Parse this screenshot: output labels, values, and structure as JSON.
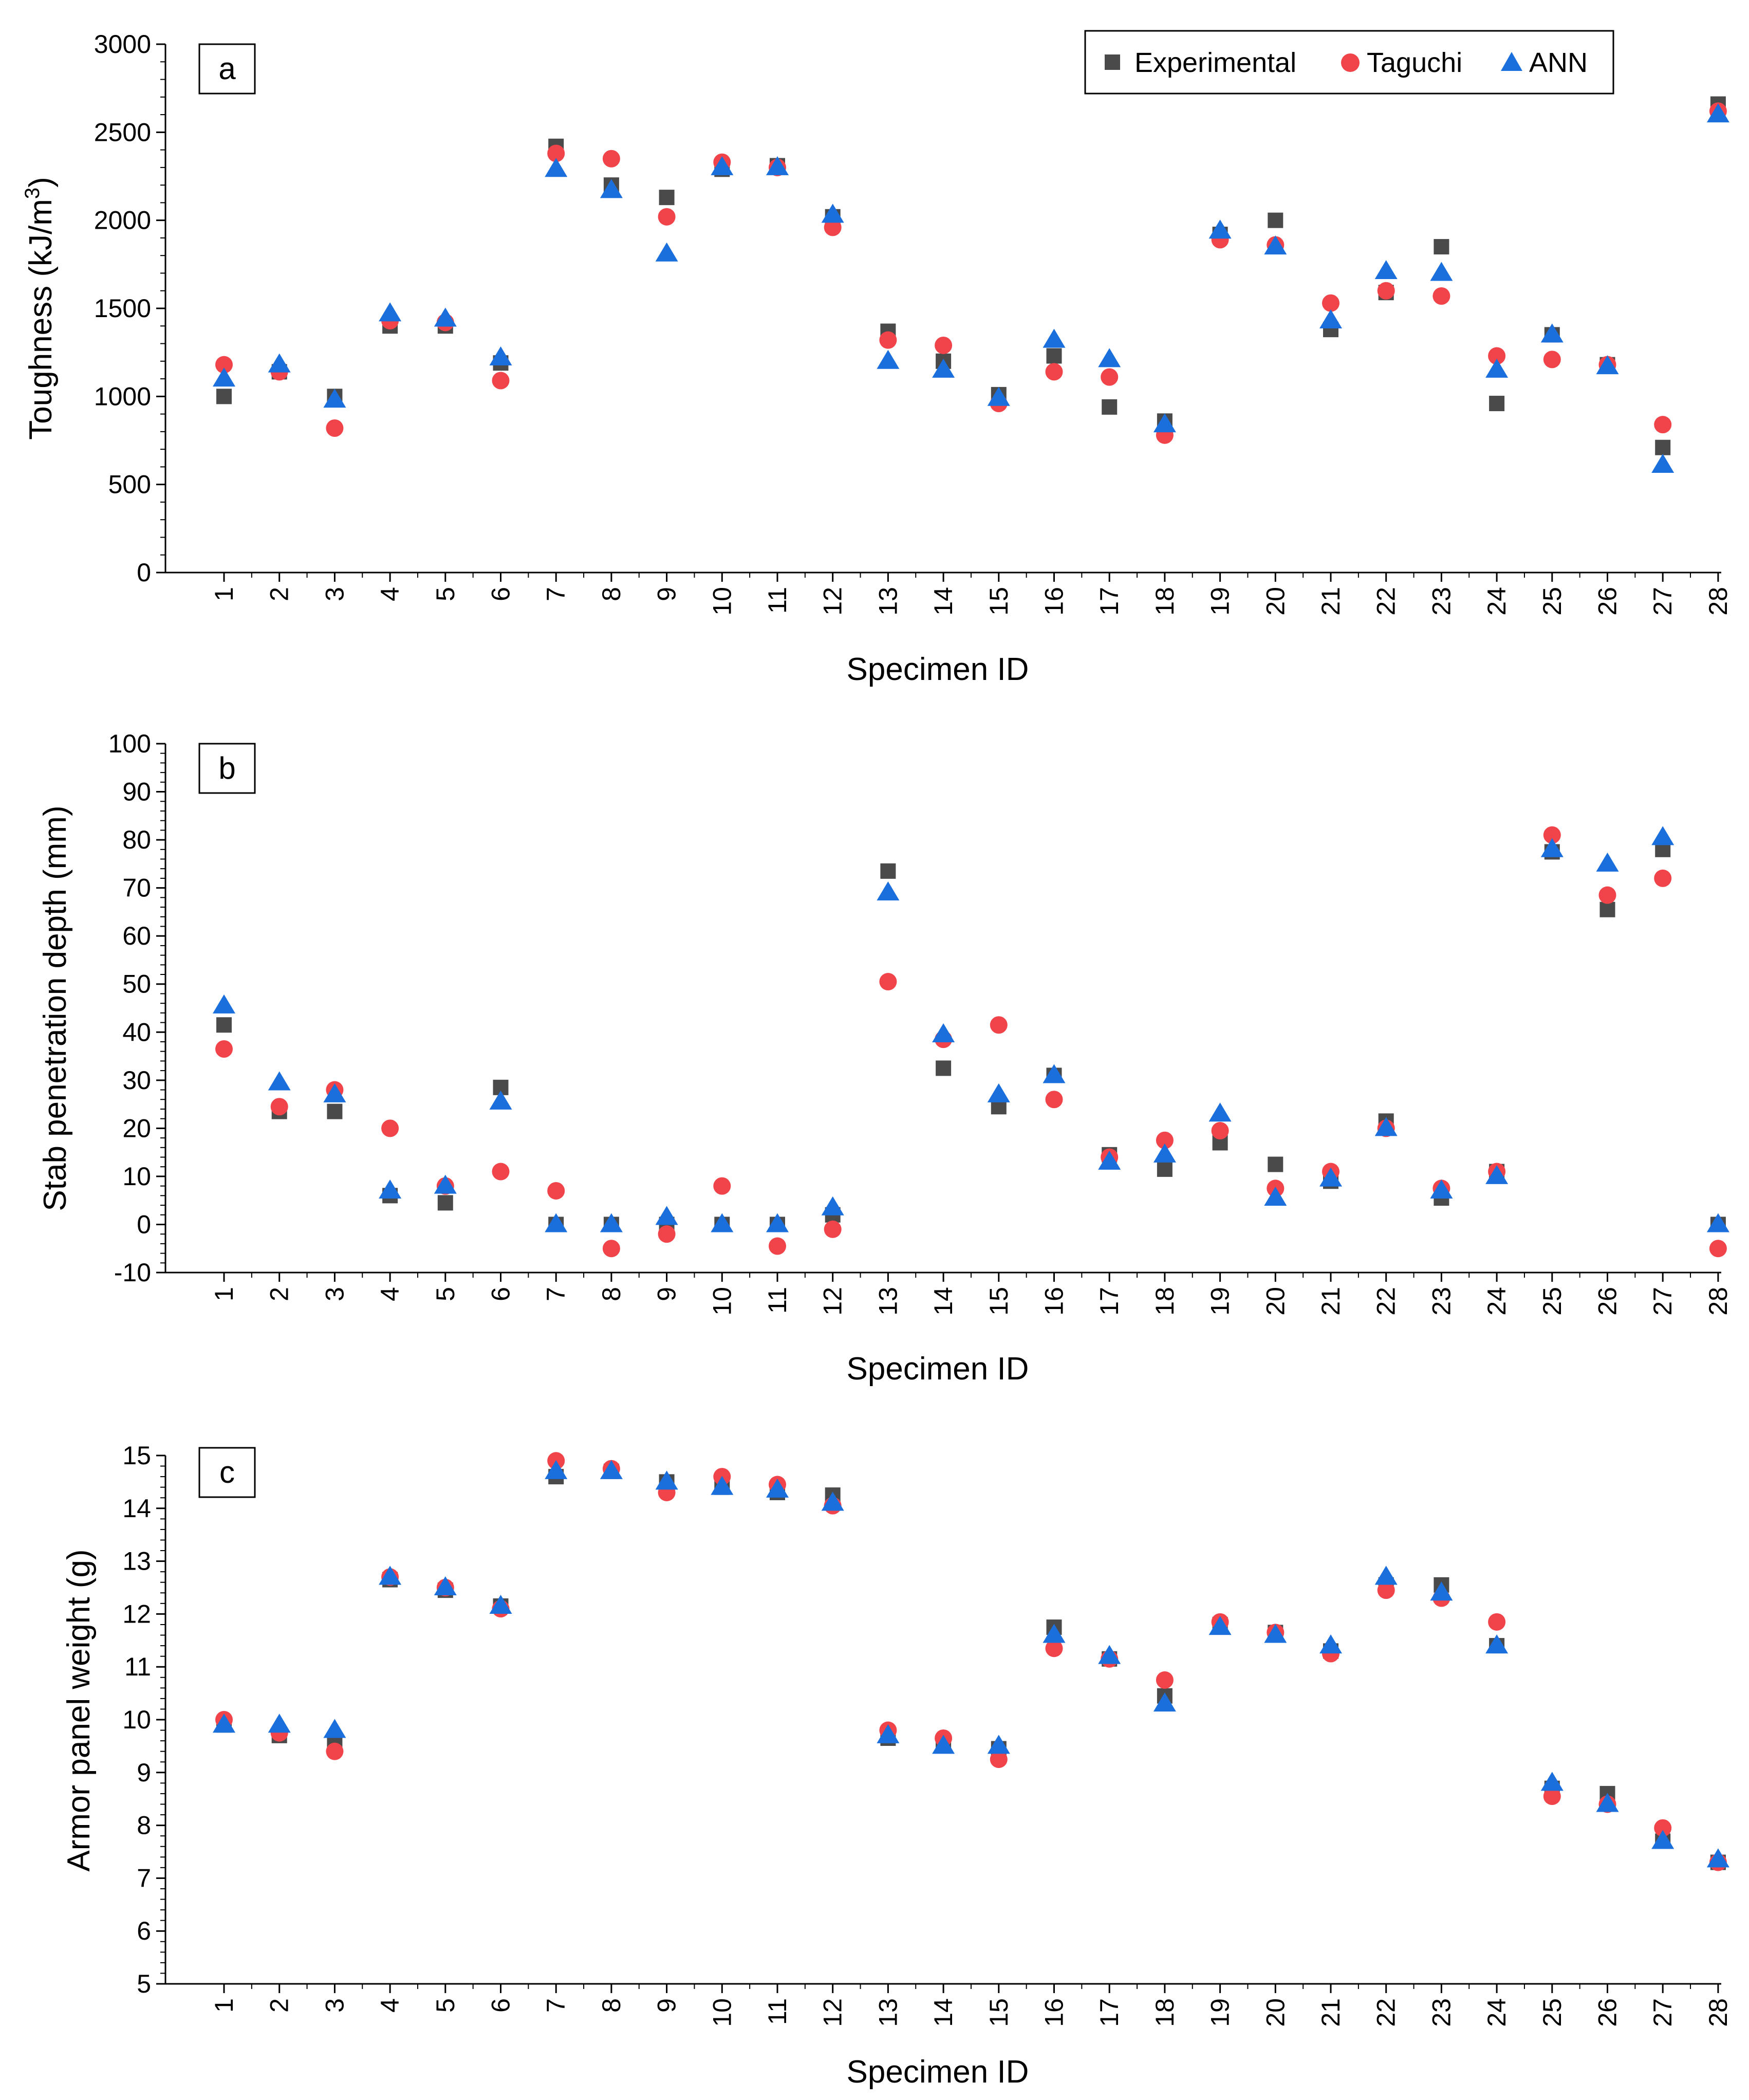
{
  "colors": {
    "experimental": "#4a4a4a",
    "taguchi": "#f0434a",
    "ann": "#1a6fdc"
  },
  "legend": {
    "experimental": "Experimental",
    "taguchi": "Taguchi",
    "ann": "ANN"
  },
  "chart_data": [
    {
      "type": "scatter",
      "panel_label": "a",
      "title": "",
      "xlabel": "Specimen ID",
      "ylabel": "Toughness (kJ/m³)",
      "ylabel_parts": {
        "main": "Toughness (kJ/m",
        "sup": "3",
        "end": ")"
      },
      "x": [
        1,
        2,
        3,
        4,
        5,
        6,
        7,
        8,
        9,
        10,
        11,
        12,
        13,
        14,
        15,
        16,
        17,
        18,
        19,
        20,
        21,
        22,
        23,
        24,
        25,
        26,
        27,
        28
      ],
      "ylim": [
        0,
        3000
      ],
      "yticks": [
        0,
        500,
        1000,
        1500,
        2000,
        2500,
        3000
      ],
      "legend_position": "top-right",
      "series": [
        {
          "name": "Experimental",
          "marker": "square",
          "values": [
            1000,
            1140,
            1000,
            1400,
            1400,
            1190,
            2420,
            2200,
            2130,
            2290,
            2310,
            2020,
            1370,
            1200,
            1010,
            1230,
            940,
            860,
            1920,
            2000,
            1380,
            1590,
            1850,
            960,
            1350,
            1180,
            710,
            2660
          ]
        },
        {
          "name": "Taguchi",
          "marker": "circle",
          "values": [
            1180,
            1140,
            820,
            1430,
            1420,
            1090,
            2380,
            2350,
            2020,
            2330,
            2300,
            1960,
            1320,
            1290,
            960,
            1140,
            1110,
            780,
            1890,
            1860,
            1530,
            1600,
            1570,
            1230,
            1210,
            1180,
            840,
            2620
          ]
        },
        {
          "name": "ANN",
          "marker": "triangle",
          "values": [
            1100,
            1180,
            980,
            1470,
            1440,
            1220,
            2290,
            2170,
            1810,
            2300,
            2300,
            2030,
            1200,
            1150,
            990,
            1320,
            1210,
            840,
            1940,
            1850,
            1430,
            1710,
            1700,
            1150,
            1350,
            1170,
            610,
            2600
          ]
        }
      ]
    },
    {
      "type": "scatter",
      "panel_label": "b",
      "title": "",
      "xlabel": "Specimen ID",
      "ylabel": "Stab penetration depth (mm)",
      "x": [
        1,
        2,
        3,
        4,
        5,
        6,
        7,
        8,
        9,
        10,
        11,
        12,
        13,
        14,
        15,
        16,
        17,
        18,
        19,
        20,
        21,
        22,
        23,
        24,
        25,
        26,
        27,
        28
      ],
      "ylim": [
        -10,
        100
      ],
      "yticks": [
        -10,
        0,
        10,
        20,
        30,
        40,
        50,
        60,
        70,
        80,
        90,
        100
      ],
      "series": [
        {
          "name": "Experimental",
          "marker": "square",
          "values": [
            41.5,
            23.5,
            23.5,
            6,
            4.5,
            28.5,
            0,
            0,
            0,
            0,
            0,
            2,
            73.5,
            32.5,
            24.5,
            31,
            14.5,
            11.5,
            17,
            12.5,
            9,
            21.5,
            5.5,
            11,
            77.5,
            65.5,
            78,
            0
          ]
        },
        {
          "name": "Taguchi",
          "marker": "circle",
          "values": [
            36.5,
            24.5,
            28,
            20,
            8,
            11,
            7,
            -5,
            -2,
            8,
            -4.5,
            -1,
            50.5,
            38.5,
            41.5,
            26,
            14,
            17.5,
            19.5,
            7.5,
            11,
            20,
            7.5,
            11,
            81,
            68.5,
            72,
            -5
          ]
        },
        {
          "name": "ANN",
          "marker": "triangle",
          "values": [
            45.5,
            29.5,
            27,
            7,
            8,
            25.5,
            0,
            0,
            1.5,
            0,
            0,
            3.5,
            69,
            39.5,
            27,
            31,
            13,
            14.5,
            23,
            5.5,
            9.5,
            20,
            7,
            10,
            78,
            75,
            80.5,
            0
          ]
        }
      ]
    },
    {
      "type": "scatter",
      "panel_label": "c",
      "title": "",
      "xlabel": "Specimen ID",
      "ylabel": "Armor panel weight (g)",
      "x": [
        1,
        2,
        3,
        4,
        5,
        6,
        7,
        8,
        9,
        10,
        11,
        12,
        13,
        14,
        15,
        16,
        17,
        18,
        19,
        20,
        21,
        22,
        23,
        24,
        25,
        26,
        27,
        28
      ],
      "ylim": [
        5,
        15
      ],
      "yticks": [
        5,
        6,
        7,
        8,
        9,
        10,
        11,
        12,
        13,
        14,
        15
      ],
      "series": [
        {
          "name": "Experimental",
          "marker": "square",
          "values": [
            9.9,
            9.7,
            9.6,
            12.65,
            12.45,
            12.15,
            14.6,
            14.7,
            14.5,
            14.4,
            14.3,
            14.25,
            9.65,
            9.55,
            9.45,
            11.75,
            11.15,
            10.45,
            11.8,
            11.65,
            11.3,
            12.55,
            12.55,
            11.4,
            8.7,
            8.6,
            7.7,
            7.3
          ]
        },
        {
          "name": "Taguchi",
          "marker": "circle",
          "values": [
            10.0,
            9.75,
            9.4,
            12.7,
            12.5,
            12.1,
            14.9,
            14.75,
            14.3,
            14.6,
            14.45,
            14.05,
            9.8,
            9.65,
            9.25,
            11.35,
            11.15,
            10.75,
            11.85,
            11.65,
            11.25,
            12.45,
            12.3,
            11.85,
            8.55,
            8.4,
            7.95,
            7.3
          ]
        },
        {
          "name": "ANN",
          "marker": "triangle",
          "values": [
            9.9,
            9.9,
            9.8,
            12.7,
            12.5,
            12.15,
            14.7,
            14.7,
            14.5,
            14.4,
            14.35,
            14.1,
            9.7,
            9.5,
            9.5,
            11.6,
            11.2,
            10.3,
            11.75,
            11.6,
            11.4,
            12.7,
            12.4,
            11.4,
            8.8,
            8.4,
            7.7,
            7.35
          ]
        }
      ]
    }
  ]
}
